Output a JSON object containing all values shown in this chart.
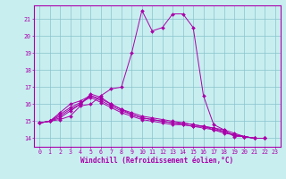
{
  "xlabel": "Windchill (Refroidissement éolien,°C)",
  "xlim": [
    -0.5,
    23.5
  ],
  "ylim": [
    13.5,
    21.8
  ],
  "yticks": [
    14,
    15,
    16,
    17,
    18,
    19,
    20,
    21
  ],
  "xticks": [
    0,
    1,
    2,
    3,
    4,
    5,
    6,
    7,
    8,
    9,
    10,
    11,
    12,
    13,
    14,
    15,
    16,
    17,
    18,
    19,
    20,
    21,
    22,
    23
  ],
  "bg_color": "#c8eef0",
  "grid_color": "#88c4cc",
  "line_color": "#aa00aa",
  "lines": [
    [
      14.9,
      15.0,
      15.1,
      15.3,
      15.9,
      16.0,
      16.5,
      16.9,
      17.0,
      19.0,
      21.5,
      20.3,
      20.5,
      21.3,
      21.3,
      20.5,
      16.5,
      14.8,
      14.5,
      14.1,
      14.1,
      14.0,
      14.0
    ],
    [
      14.9,
      15.0,
      15.5,
      16.0,
      16.2,
      16.5,
      16.3,
      16.0,
      15.7,
      15.5,
      15.3,
      15.2,
      15.1,
      15.0,
      14.9,
      14.8,
      14.7,
      14.6,
      14.4,
      14.2,
      14.1,
      14.0,
      14.0
    ],
    [
      14.9,
      15.0,
      15.3,
      15.7,
      16.0,
      16.5,
      16.2,
      15.9,
      15.6,
      15.4,
      15.2,
      15.1,
      15.0,
      14.9,
      14.8,
      14.7,
      14.7,
      14.5,
      14.4,
      14.2,
      14.1,
      14.0,
      14.0
    ],
    [
      14.9,
      15.0,
      15.4,
      15.8,
      16.1,
      16.4,
      16.1,
      15.8,
      15.5,
      15.3,
      15.1,
      15.0,
      14.9,
      14.8,
      14.8,
      14.7,
      14.6,
      14.5,
      14.3,
      14.2,
      14.1,
      14.0,
      14.0
    ],
    [
      14.9,
      15.0,
      15.2,
      15.6,
      16.0,
      16.6,
      16.4,
      16.0,
      15.7,
      15.4,
      15.2,
      15.1,
      15.0,
      14.9,
      14.9,
      14.8,
      14.7,
      14.6,
      14.5,
      14.3,
      14.1,
      14.0,
      14.0
    ]
  ]
}
